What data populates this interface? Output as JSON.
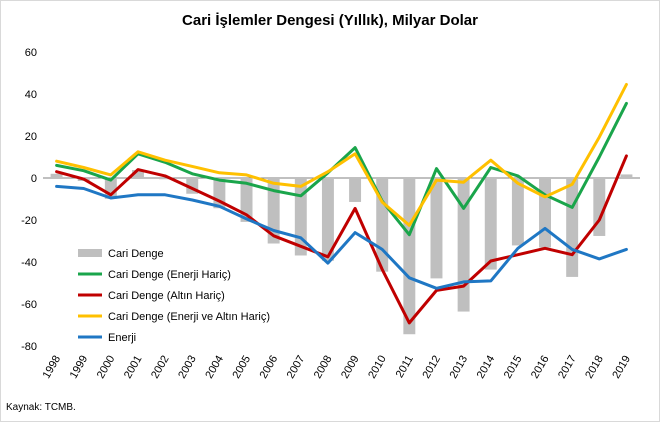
{
  "chart_data": {
    "type": "bar",
    "title": "Cari İşlemler Dengesi (Yıllık),  Milyar Dolar",
    "source": "Kaynak: TCMB.",
    "ylim": [
      -80,
      60
    ],
    "yticks": [
      60,
      40,
      20,
      0,
      -20,
      -40,
      -60,
      -80
    ],
    "grid": false,
    "legend_position": "bottom-left",
    "categories": [
      "1998",
      "1999",
      "2000",
      "2001",
      "2002",
      "2003",
      "2004",
      "2005",
      "2006",
      "2007",
      "2008",
      "2009",
      "2010",
      "2011",
      "2012",
      "2013",
      "2014",
      "2015",
      "2016",
      "2017",
      "2018",
      "2019"
    ],
    "series": [
      {
        "name": "Cari Denge",
        "kind": "bar",
        "color": "#bfbfbf",
        "values": [
          2,
          -1.4,
          -9.9,
          3.8,
          -0.6,
          -7.5,
          -14.4,
          -20.9,
          -31.2,
          -36.9,
          -39.4,
          -11.4,
          -44.6,
          -74.4,
          -47.8,
          -63.6,
          -43.6,
          -32.1,
          -33.1,
          -47.1,
          -27.6,
          1.7
        ]
      },
      {
        "name": "Cari Denge (Enerji Hariç)",
        "kind": "line",
        "color": "#1aa54b",
        "values": [
          6,
          3.5,
          -1,
          11.5,
          7.5,
          2,
          -1,
          -2.5,
          -6,
          -8.5,
          2.5,
          14.5,
          -11,
          -27,
          4.5,
          -14.5,
          5,
          1,
          -8,
          -14,
          10,
          35.5
        ]
      },
      {
        "name": "Cari Denge (Altın Hariç)",
        "kind": "line",
        "color": "#c00000",
        "values": [
          3,
          -0.5,
          -8,
          4,
          1,
          -5,
          -11,
          -17.5,
          -27.5,
          -32.5,
          -37.5,
          -14.5,
          -43.5,
          -69,
          -53.5,
          -51.5,
          -39.5,
          -36.5,
          -33.5,
          -36.5,
          -20,
          10.5
        ]
      },
      {
        "name": "Cari Denge (Enerji ve Altın Hariç)",
        "kind": "line",
        "color": "#ffc000",
        "values": [
          8,
          5,
          1.5,
          12.5,
          8.5,
          5.5,
          2.5,
          1.5,
          -2.5,
          -4,
          3,
          11.5,
          -11.5,
          -22.5,
          -1,
          -2,
          8.5,
          -2.5,
          -9,
          -3,
          19.5,
          44.5
        ]
      },
      {
        "name": "Enerji",
        "kind": "line",
        "color": "#1f77c4",
        "values": [
          -4,
          -5,
          -9.5,
          -8,
          -8,
          -10.5,
          -13.5,
          -19.5,
          -25,
          -28.5,
          -40.5,
          -26,
          -34,
          -47.5,
          -52.5,
          -49.5,
          -49,
          -33.5,
          -24,
          -34,
          -38.5,
          -34
        ]
      }
    ]
  }
}
